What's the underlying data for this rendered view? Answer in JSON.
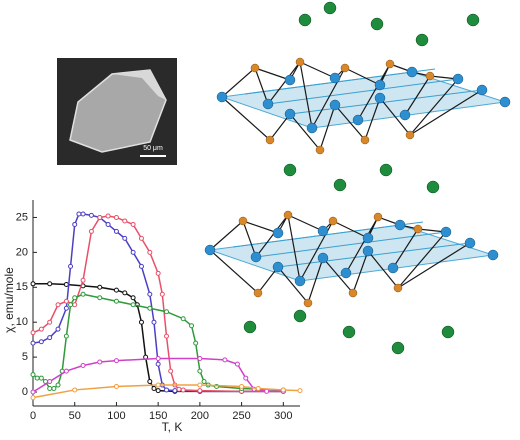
{
  "chart_data": {
    "type": "line",
    "x_label": "T, K",
    "y_label": "χ, emu/mole",
    "xlim": [
      0,
      320
    ],
    "xticks": [
      0,
      50,
      100,
      150,
      200,
      250,
      300
    ],
    "ylim": [
      -2,
      27.5
    ],
    "yticks": [
      0,
      5,
      10,
      15,
      20,
      25
    ],
    "series": [
      {
        "color": "#111111",
        "x": [
          0,
          20,
          40,
          60,
          80,
          100,
          110,
          120,
          125,
          130,
          135,
          140,
          145,
          150,
          170,
          200,
          250,
          300
        ],
        "values": [
          15.5,
          15.5,
          15.4,
          15.2,
          15,
          14.6,
          14.2,
          13.5,
          12.5,
          10,
          5,
          1.5,
          0.5,
          0.2,
          0.1,
          0.1,
          0.1,
          0.1
        ]
      },
      {
        "color": "#4b3fc4",
        "x": [
          0,
          10,
          20,
          30,
          40,
          45,
          50,
          55,
          60,
          70,
          80,
          90,
          100,
          110,
          120,
          130,
          140,
          145,
          150,
          155,
          160,
          170,
          200,
          250,
          300
        ],
        "values": [
          7,
          7.2,
          7.8,
          9,
          12,
          18,
          24,
          25.5,
          25.5,
          25.3,
          25,
          24,
          23,
          22,
          20,
          18,
          14,
          10,
          4,
          1,
          0.3,
          0.2,
          0.1,
          0.1,
          0.1
        ]
      },
      {
        "color": "#e8506a",
        "x": [
          0,
          10,
          20,
          30,
          40,
          50,
          60,
          70,
          80,
          90,
          100,
          110,
          120,
          130,
          140,
          150,
          155,
          160,
          165,
          170,
          175,
          180,
          200,
          250,
          300
        ],
        "values": [
          8.5,
          9,
          10,
          12.5,
          13,
          12.5,
          16,
          23,
          25,
          25.2,
          25,
          24.5,
          24,
          22,
          20,
          17,
          14,
          8,
          3,
          1,
          0.4,
          0.3,
          0.2,
          0.1,
          0.1
        ]
      },
      {
        "color": "#2e9a3a",
        "x": [
          0,
          5,
          10,
          15,
          20,
          25,
          30,
          35,
          40,
          45,
          50,
          60,
          80,
          100,
          120,
          140,
          160,
          180,
          190,
          195,
          200,
          205,
          210,
          220,
          250,
          300
        ],
        "values": [
          2.5,
          2,
          2,
          1.5,
          0.5,
          0.5,
          1,
          3,
          8,
          12.5,
          13.5,
          14,
          13.5,
          13,
          12.5,
          12,
          11.5,
          10.5,
          9.5,
          7,
          3,
          1.5,
          1,
          0.8,
          0.5,
          0.3
        ]
      },
      {
        "color": "#d040c8",
        "x": [
          0,
          20,
          40,
          60,
          80,
          100,
          150,
          200,
          230,
          245,
          255,
          265,
          280,
          300
        ],
        "values": [
          0,
          1.5,
          3,
          3.8,
          4.3,
          4.5,
          4.8,
          4.8,
          4.6,
          4,
          2,
          0.4,
          0.1,
          0.1
        ]
      },
      {
        "color": "#f0a040",
        "x": [
          0,
          50,
          100,
          150,
          200,
          250,
          270,
          300,
          320
        ],
        "values": [
          -0.8,
          0.3,
          0.8,
          1,
          1,
          0.8,
          0.5,
          0.3,
          0.2
        ]
      }
    ]
  },
  "inset": {
    "scale_label": "50 μm"
  }
}
